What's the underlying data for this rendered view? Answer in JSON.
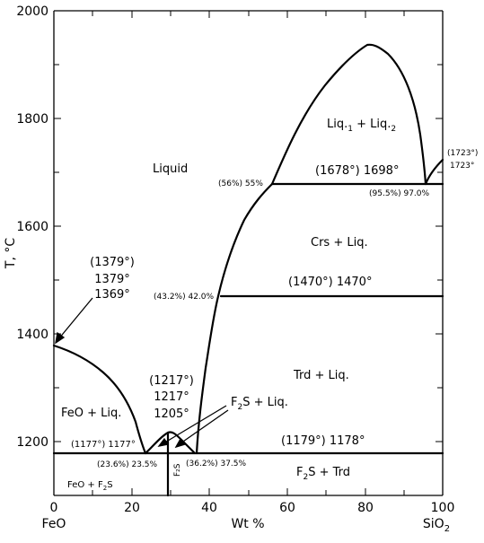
{
  "axes": {
    "y_title": "T, °C",
    "x_title": "Wt %",
    "y_ticks": [
      "2000",
      "1800",
      "1600",
      "1400",
      "1200"
    ],
    "x_ticks": [
      "0",
      "20",
      "40",
      "60",
      "80",
      "100"
    ],
    "x_end_left": "FeO",
    "x_end_right_main": "SiO",
    "x_end_right_sub": "2"
  },
  "regions": {
    "liquid": "Liquid",
    "liq_misc_a": "Liq.",
    "liq_misc_a_sub": "1",
    "liq_misc_plus": " + Liq.",
    "liq_misc_b_sub": "2",
    "crs_liq": "Crs + Liq.",
    "trd_liq": "Trd + Liq.",
    "feo_liq": "FeO + Liq.",
    "f2s_liq_main": "F",
    "f2s_liq_sub": "2",
    "f2s_liq_rest": "S + Liq.",
    "f2s_trd_main": "F",
    "f2s_trd_sub": "2",
    "f2s_trd_rest": "S + Trd",
    "feo_f2s_main": "FeO + F",
    "feo_f2s_sub": "2",
    "feo_f2s_rest": "S",
    "f2s_vertical": "F₂S"
  },
  "annotations": {
    "feo_melt_1": "(1379°)",
    "feo_melt_2": "1379°",
    "feo_melt_3": "1369°",
    "f2s_melt_1": "(1217°)",
    "f2s_melt_2": "1217°",
    "f2s_melt_3": "1205°",
    "eutectic_1177": "(1177°) 1177°",
    "eutectic_1178": "(1179°) 1178°",
    "comp_235": "(23.6%) 23.5%",
    "comp_375": "(36.2%) 37.5%",
    "iso_1470": "(1470°) 1470°",
    "comp_420": "(43.2%) 42.0%",
    "iso_1698": "(1678°) 1698°",
    "comp_55": "(56%) 55%",
    "comp_97": "(95.5%) 97.0%",
    "sio2_melt_1": "(1723°)",
    "sio2_melt_2": "1723°"
  },
  "chart_data": {
    "type": "diagram",
    "x_range": [
      0,
      100
    ],
    "y_range": [
      1100,
      2000
    ],
    "x_label": "Wt %",
    "y_label": "T, °C",
    "liquidus_feo": [
      [
        0,
        1369
      ],
      [
        4,
        1360
      ],
      [
        9,
        1343
      ],
      [
        14,
        1318
      ],
      [
        18,
        1283
      ],
      [
        21,
        1240
      ],
      [
        23.5,
        1177
      ]
    ],
    "liquidus_f2s_left": [
      [
        23.5,
        1177
      ],
      [
        26,
        1198
      ],
      [
        29.6,
        1217
      ]
    ],
    "liquidus_f2s_right": [
      [
        29.6,
        1217
      ],
      [
        33,
        1198
      ],
      [
        36.5,
        1179
      ]
    ],
    "liquidus_sio2": [
      [
        37.5,
        1178
      ],
      [
        38.5,
        1290
      ],
      [
        40,
        1390
      ],
      [
        42,
        1470
      ],
      [
        48,
        1580
      ],
      [
        52,
        1640
      ],
      [
        55,
        1678
      ]
    ],
    "miscibility_gap": [
      [
        56,
        1678
      ],
      [
        61,
        1762
      ],
      [
        66,
        1832
      ],
      [
        71,
        1880
      ],
      [
        76,
        1915
      ],
      [
        81,
        1935
      ],
      [
        84,
        1930
      ],
      [
        88,
        1890
      ],
      [
        92,
        1805
      ],
      [
        95,
        1678
      ]
    ],
    "liquidus_cristobalite": [
      [
        95.5,
        1678
      ],
      [
        98,
        1705
      ],
      [
        100,
        1723
      ]
    ],
    "isotherms": [
      1177,
      1178,
      1470,
      1678
    ]
  }
}
